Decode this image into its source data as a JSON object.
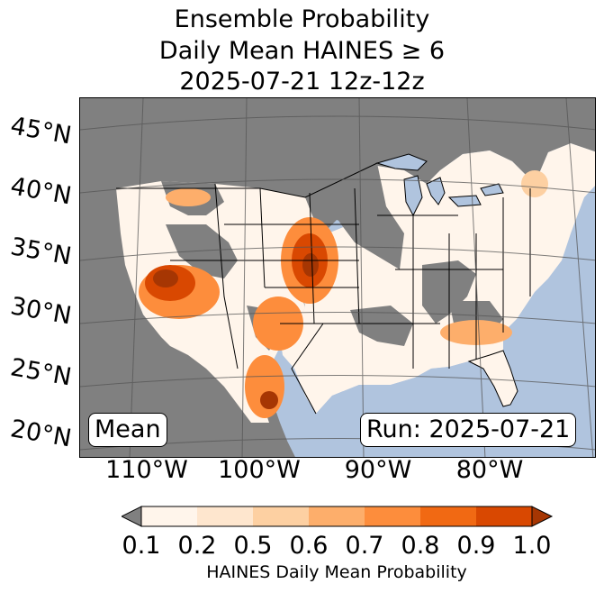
{
  "title": {
    "line1": "Ensemble Probability",
    "line2": "Daily Mean HAINES ≥ 6",
    "line3": "2025-07-21 12z-12z"
  },
  "map": {
    "lat_labels": [
      "45°N",
      "40°N",
      "35°N",
      "30°N",
      "25°N",
      "20°N"
    ],
    "lon_labels": [
      "110°W",
      "100°W",
      "90°W",
      "80°W"
    ],
    "mean_badge": "Mean",
    "run_badge": "Run: 2025-07-21",
    "colors": {
      "ocean": "#b0c4de",
      "no_data": "#808080",
      "land_low": "#fff5eb"
    },
    "hotspots": [
      {
        "region": "Southwest desert (AZ/S. CA/NV)",
        "probability": 1.0
      },
      {
        "region": "Colorado / Kansas border",
        "probability": 1.0
      },
      {
        "region": "Southwest Texas / N. Mexico",
        "probability": 0.9
      },
      {
        "region": "New Mexico",
        "probability": 0.8
      },
      {
        "region": "Southeast coastal plain",
        "probability": 0.6
      }
    ]
  },
  "colorbar": {
    "ticks": [
      "0.1",
      "0.2",
      "0.5",
      "0.6",
      "0.7",
      "0.8",
      "0.9",
      "1.0"
    ],
    "colors": [
      "#fff5eb",
      "#fee6ce",
      "#fdd0a2",
      "#fdae6b",
      "#fd8d3c",
      "#f16913",
      "#d94801",
      "#a63603"
    ],
    "under_color": "#808080",
    "label": "HAINES Daily Mean Probability"
  }
}
